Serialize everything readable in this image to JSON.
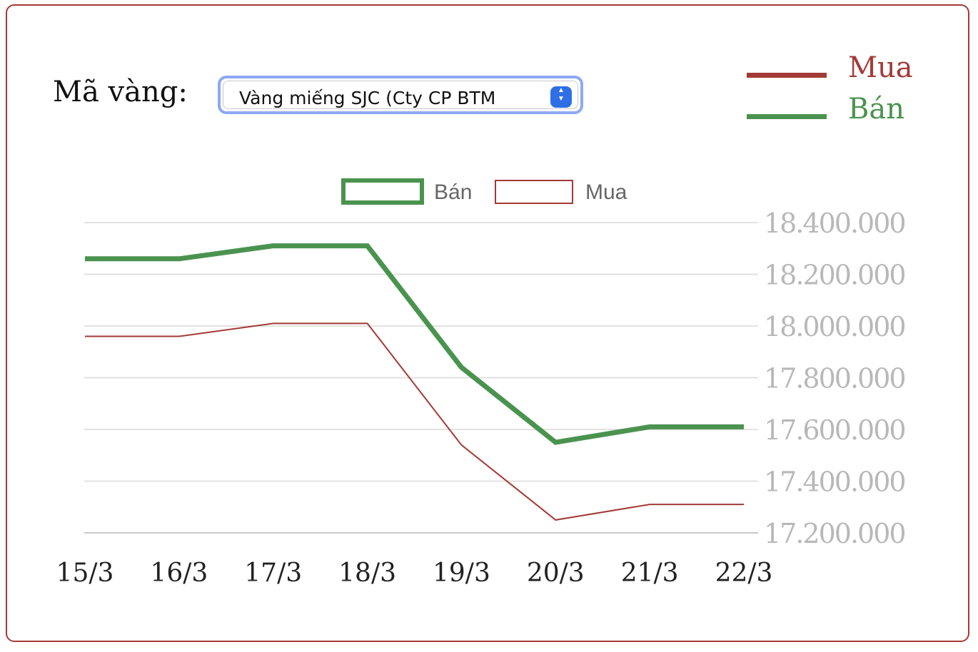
{
  "selector": {
    "label": "Mã vàng:",
    "selected": "Vàng miếng SJC (Cty CP BTM"
  },
  "outer_legend": [
    {
      "label": "Mua",
      "color": "#a33a36"
    },
    {
      "label": "Bán",
      "color": "#4a934f"
    }
  ],
  "chart_data": {
    "type": "line",
    "categories": [
      "15/3",
      "16/3",
      "17/3",
      "18/3",
      "19/3",
      "20/3",
      "21/3",
      "22/3"
    ],
    "series": [
      {
        "name": "Bán",
        "color": "#4a934f",
        "values": [
          18260000,
          18260000,
          18310000,
          18310000,
          17840000,
          17550000,
          17610000,
          17610000
        ]
      },
      {
        "name": "Mua",
        "color": "#a33a36",
        "values": [
          17960000,
          17960000,
          18010000,
          18010000,
          17540000,
          17250000,
          17310000,
          17310000
        ]
      }
    ],
    "yticks": [
      "18.400.000",
      "18.200.000",
      "18.000.000",
      "17.800.000",
      "17.600.000",
      "17.400.000",
      "17.200.000"
    ],
    "ylim": [
      17200000,
      18400000
    ],
    "title": "",
    "xlabel": "",
    "ylabel": "",
    "legend": "top-center",
    "grid": true
  }
}
